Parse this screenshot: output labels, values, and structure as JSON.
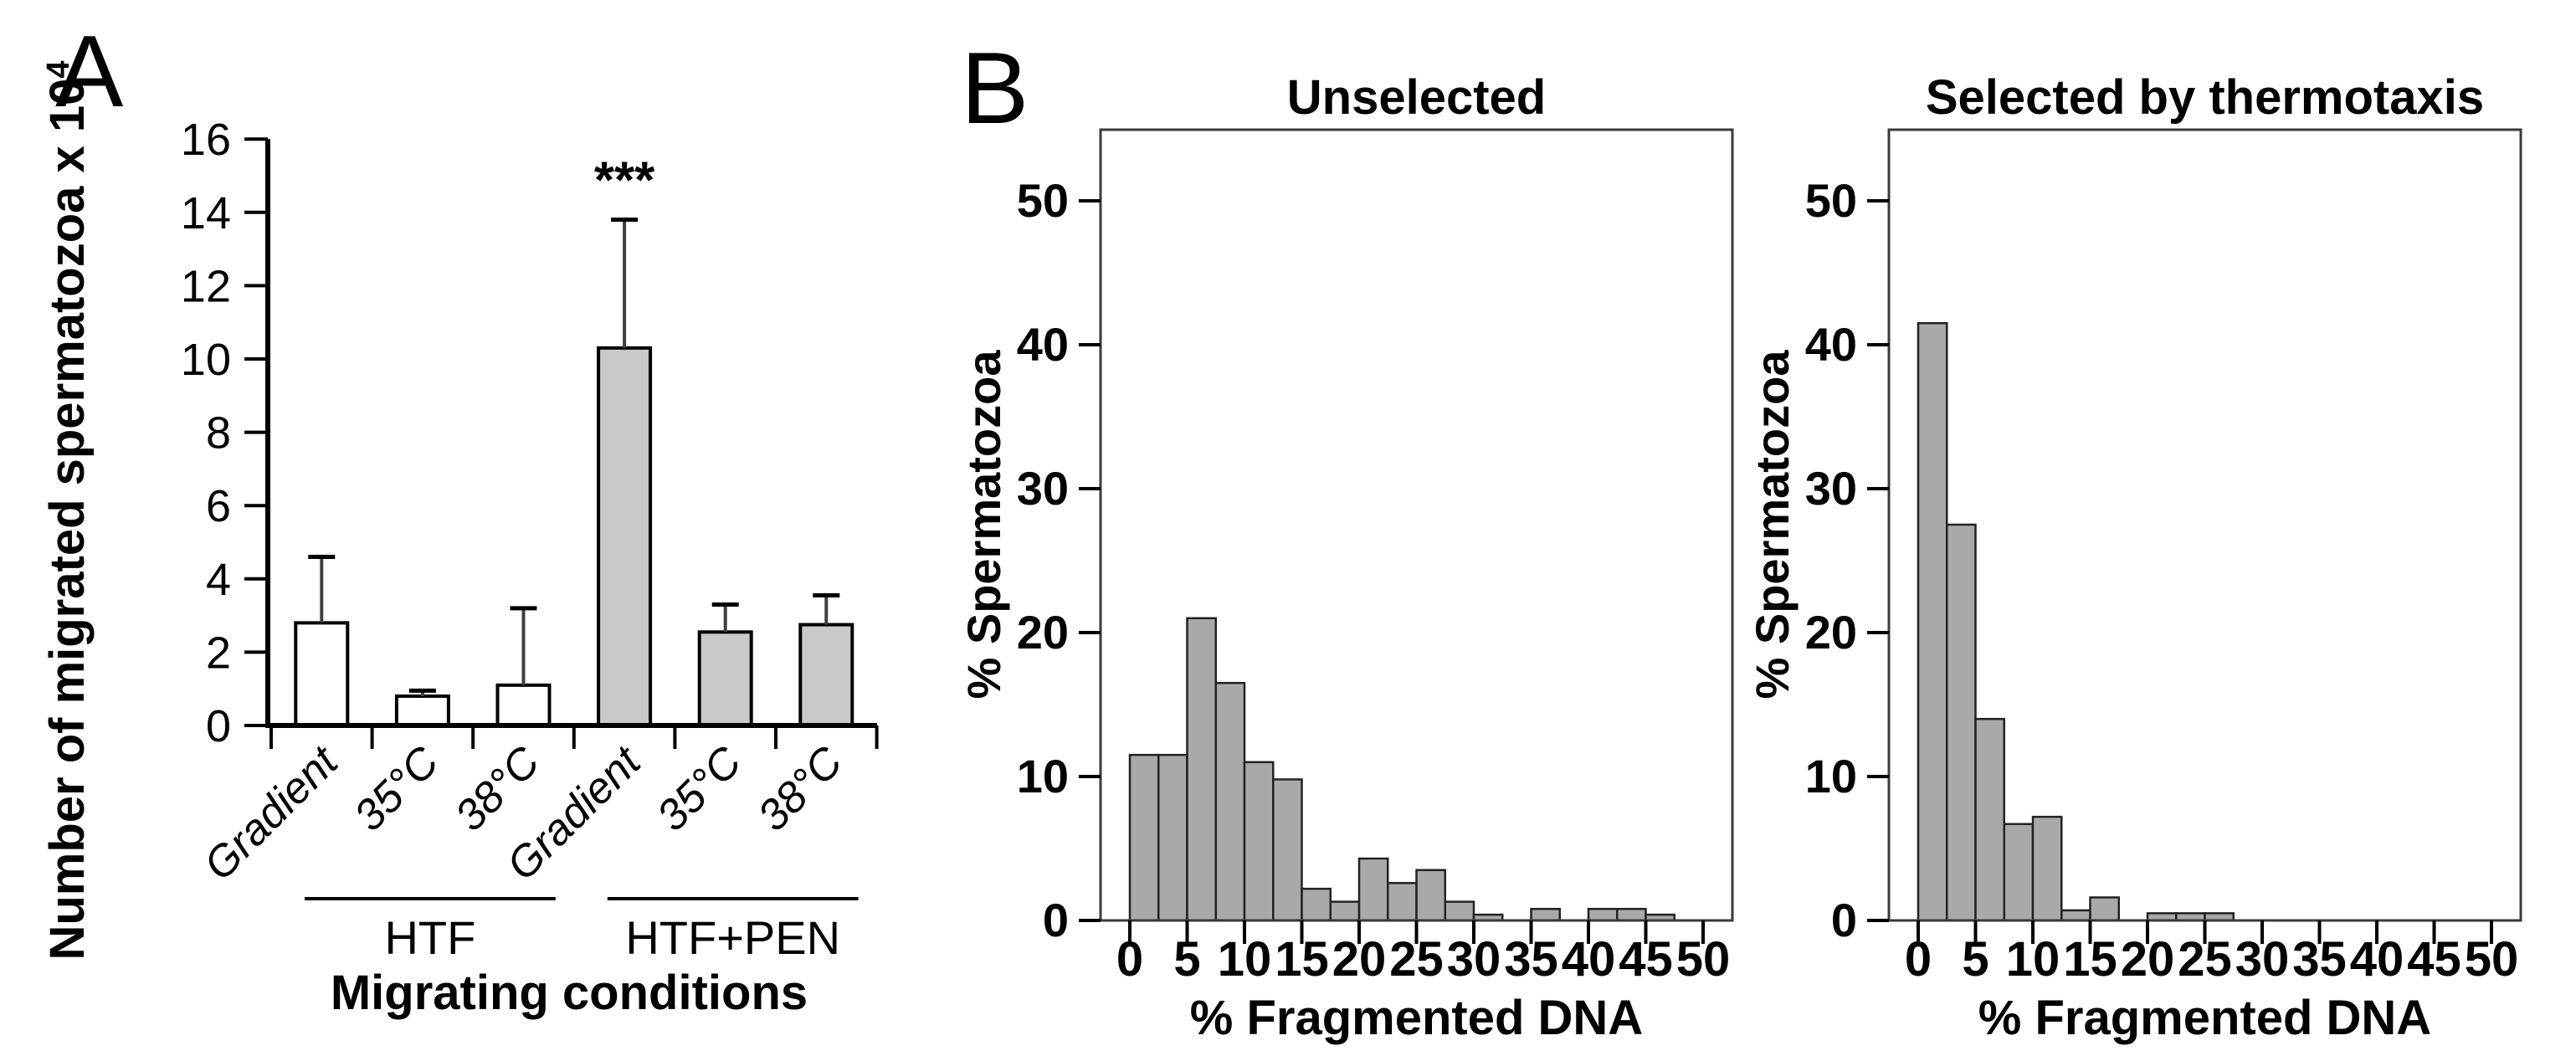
{
  "panels": {
    "a_label": "A",
    "b_label": "B"
  },
  "colors": {
    "background": "#ffffff",
    "axis": "#000000",
    "box_border": "#3a3a3a",
    "bar_white_fill": "#ffffff",
    "bar_gray_fill": "#c9c9c9",
    "bar_stroke": "#000000",
    "hist_bar_fill": "#a9a9a9",
    "hist_bar_stroke": "#222222",
    "error_bar": "#3f3f3f"
  },
  "chart_data": [
    {
      "id": "migration-bar-chart",
      "type": "bar",
      "title": "",
      "ylabel": "Number of migrated spermatozoa x 10⁴",
      "ylabel_base": "Number of migrated spermatozoa x 10",
      "ylabel_exponent": "4",
      "xlabel": "Migrating conditions",
      "ylim": [
        0,
        16
      ],
      "yticks": [
        0,
        2,
        4,
        6,
        8,
        10,
        12,
        14,
        16
      ],
      "categories": [
        "Gradient",
        "35°C",
        "38°C",
        "Gradient",
        "35°C",
        "38°C"
      ],
      "values": [
        2.8,
        0.8,
        1.1,
        10.3,
        2.55,
        2.75
      ],
      "errors_plus": [
        1.8,
        0.15,
        2.1,
        3.5,
        0.75,
        0.8
      ],
      "bar_fills": [
        "#ffffff",
        "#ffffff",
        "#ffffff",
        "#c9c9c9",
        "#c9c9c9",
        "#c9c9c9"
      ],
      "significance": [
        {
          "index": 3,
          "label": "***"
        }
      ],
      "groups": [
        {
          "label": "HTF",
          "from": 0,
          "to": 2
        },
        {
          "label": "HTF+PEN",
          "from": 3,
          "to": 5
        }
      ],
      "grid": false,
      "legend": "none"
    },
    {
      "id": "unselected-histogram",
      "type": "bar",
      "subtype": "histogram",
      "title": "Unselected",
      "xlabel": "% Fragmented DNA",
      "ylabel": "% Spermatozoa",
      "xlim": [
        -2.5,
        52.5
      ],
      "ylim": [
        0,
        55
      ],
      "xticks": [
        0,
        5,
        10,
        15,
        20,
        25,
        30,
        35,
        40,
        45,
        50
      ],
      "yticks": [
        0,
        10,
        20,
        30,
        40,
        50
      ],
      "bin_start": 0,
      "bin_width": 2.5,
      "values": [
        11.5,
        11.5,
        21,
        16.5,
        11,
        9.8,
        2.2,
        1.3,
        4.3,
        2.6,
        3.5,
        1.3,
        0.4,
        0,
        0.8,
        0,
        0.8,
        0.8,
        0.4,
        0
      ],
      "grid": false,
      "legend": "none"
    },
    {
      "id": "thermotaxis-histogram",
      "type": "bar",
      "subtype": "histogram",
      "title": "Selected by thermotaxis",
      "xlabel": "% Fragmented DNA",
      "ylabel": "% Spermatozoa",
      "xlim": [
        -2.5,
        52.5
      ],
      "ylim": [
        0,
        55
      ],
      "xticks": [
        0,
        5,
        10,
        15,
        20,
        25,
        30,
        35,
        40,
        45,
        50
      ],
      "yticks": [
        0,
        10,
        20,
        30,
        40,
        50
      ],
      "bin_start": 0,
      "bin_width": 2.5,
      "values": [
        41.5,
        27.5,
        14,
        6.7,
        7.2,
        0.7,
        1.6,
        0,
        0.5,
        0.5,
        0.5,
        0,
        0,
        0,
        0,
        0,
        0,
        0,
        0,
        0
      ],
      "grid": false,
      "legend": "none"
    }
  ]
}
